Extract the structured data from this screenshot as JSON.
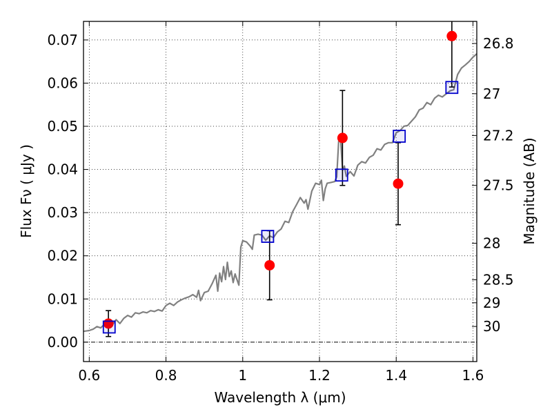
{
  "chart_data": {
    "type": "scatter",
    "title": "",
    "xlabel": "Wavelength  λ (μm)",
    "ylabel": "Flux  Fν  ( μJy )",
    "y2label": "Magnitude (AB)",
    "xlim": [
      0.585,
      1.61
    ],
    "ylim": [
      -0.0045,
      0.0743
    ],
    "grid": true,
    "x_ticks": [
      0.6,
      0.8,
      1.0,
      1.2,
      1.4,
      1.6
    ],
    "x_tick_labels": [
      "0.6",
      "0.8",
      "1",
      "1.2",
      "1.4",
      "1.6"
    ],
    "y_ticks": [
      0.0,
      0.01,
      0.02,
      0.03,
      0.04,
      0.05,
      0.06,
      0.07
    ],
    "y_tick_labels": [
      "0.00",
      "0.01",
      "0.02",
      "0.03",
      "0.04",
      "0.05",
      "0.06",
      "0.07"
    ],
    "y2_ticks": [
      26.8,
      27,
      27.2,
      27.5,
      28,
      28.5,
      29,
      30
    ],
    "y2_tick_labels": [
      "26.8",
      "27",
      "27.2",
      "27.5",
      "28",
      "28.5",
      "29",
      "30"
    ],
    "colors": {
      "model": "#808080",
      "observed": "#ff0000",
      "synthetic": "#0000cc",
      "errorbar": "#000000",
      "grid": "#000000"
    },
    "series": [
      {
        "type": "line",
        "x": [
          0.585,
          0.6,
          0.61,
          0.62,
          0.63,
          0.64,
          0.65,
          0.66,
          0.67,
          0.68,
          0.69,
          0.7,
          0.71,
          0.72,
          0.73,
          0.74,
          0.75,
          0.76,
          0.77,
          0.78,
          0.79,
          0.8,
          0.81,
          0.82,
          0.83,
          0.84,
          0.85,
          0.86,
          0.87,
          0.88,
          0.885,
          0.89,
          0.9,
          0.91,
          0.92,
          0.93,
          0.935,
          0.94,
          0.945,
          0.95,
          0.955,
          0.96,
          0.965,
          0.97,
          0.975,
          0.98,
          0.985,
          0.99,
          0.995,
          1.0,
          1.01,
          1.02,
          1.025,
          1.03,
          1.04,
          1.05,
          1.06,
          1.07,
          1.08,
          1.09,
          1.1,
          1.11,
          1.12,
          1.13,
          1.14,
          1.15,
          1.16,
          1.165,
          1.17,
          1.18,
          1.19,
          1.2,
          1.205,
          1.21,
          1.215,
          1.22,
          1.23,
          1.24,
          1.245,
          1.25,
          1.255,
          1.26,
          1.265,
          1.27,
          1.28,
          1.29,
          1.3,
          1.31,
          1.32,
          1.33,
          1.34,
          1.35,
          1.36,
          1.37,
          1.38,
          1.39,
          1.4,
          1.41,
          1.42,
          1.43,
          1.44,
          1.45,
          1.46,
          1.47,
          1.48,
          1.49,
          1.5,
          1.51,
          1.52,
          1.53,
          1.54,
          1.55,
          1.56,
          1.57,
          1.58,
          1.59,
          1.6,
          1.61
        ],
        "y": [
          0.0025,
          0.0027,
          0.003,
          0.0036,
          0.0033,
          0.0042,
          0.0047,
          0.004,
          0.0052,
          0.0043,
          0.0055,
          0.0062,
          0.0058,
          0.0068,
          0.0066,
          0.007,
          0.0068,
          0.0073,
          0.0071,
          0.0075,
          0.0072,
          0.0085,
          0.009,
          0.0085,
          0.0093,
          0.0098,
          0.0102,
          0.0105,
          0.011,
          0.0104,
          0.012,
          0.0096,
          0.0115,
          0.0118,
          0.0135,
          0.0155,
          0.0118,
          0.016,
          0.014,
          0.0175,
          0.0145,
          0.0185,
          0.0152,
          0.0165,
          0.0138,
          0.0158,
          0.0145,
          0.0132,
          0.022,
          0.0235,
          0.0232,
          0.0222,
          0.0215,
          0.0248,
          0.025,
          0.0248,
          0.0236,
          0.0246,
          0.0242,
          0.0255,
          0.0262,
          0.028,
          0.0277,
          0.0302,
          0.0318,
          0.0335,
          0.0322,
          0.033,
          0.0308,
          0.035,
          0.0368,
          0.0365,
          0.0375,
          0.0328,
          0.0355,
          0.0368,
          0.037,
          0.0372,
          0.0383,
          0.0465,
          0.0472,
          0.0398,
          0.0408,
          0.0384,
          0.0395,
          0.0385,
          0.041,
          0.0418,
          0.0415,
          0.0428,
          0.0433,
          0.0448,
          0.0445,
          0.0458,
          0.0462,
          0.0462,
          0.0485,
          0.049,
          0.05,
          0.0502,
          0.0512,
          0.0522,
          0.0538,
          0.0542,
          0.0555,
          0.055,
          0.0565,
          0.0572,
          0.0568,
          0.0575,
          0.0582,
          0.0585,
          0.062,
          0.0635,
          0.0642,
          0.065,
          0.066,
          0.0668
        ]
      },
      {
        "type": "scatter",
        "marker": "circle",
        "x": [
          0.65,
          1.07,
          1.26,
          1.405,
          1.545
        ],
        "y": [
          0.0043,
          0.0178,
          0.0473,
          0.0367,
          0.0709
        ],
        "yerr": [
          0.003,
          0.008,
          0.011,
          0.0095,
          0.0118
        ]
      },
      {
        "type": "scatter",
        "marker": "square",
        "x": [
          0.652,
          1.065,
          1.258,
          1.408,
          1.545
        ],
        "y": [
          0.0035,
          0.0245,
          0.0387,
          0.0477,
          0.059
        ]
      }
    ]
  }
}
